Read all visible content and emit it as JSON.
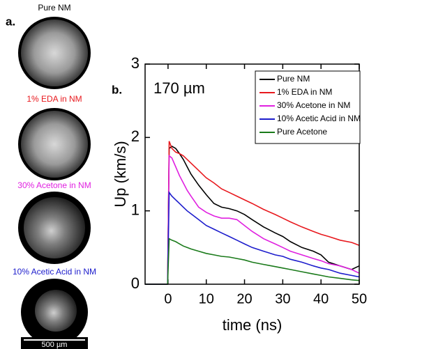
{
  "panel_a": {
    "label": "a.",
    "images": [
      {
        "caption": "Pure NM",
        "color": "#000000"
      },
      {
        "caption": "1% EDA in NM",
        "color": "#e8191e"
      },
      {
        "caption": "30% Acetone in NM",
        "color": "#e020e0"
      },
      {
        "caption": "10% Acetic Acid in NM",
        "color": "#1c1ccc"
      }
    ],
    "scale_bar": "500 µm"
  },
  "chart_data": {
    "type": "line",
    "panel_label": "b.",
    "annotation": "170 µm",
    "xlabel": "time (ns)",
    "ylabel": "Up (km/s)",
    "xlim": [
      -6,
      50
    ],
    "xticks": [
      0,
      10,
      20,
      30,
      40,
      50
    ],
    "ylim": [
      0,
      3
    ],
    "yticks": [
      0,
      1,
      2,
      3
    ],
    "x": [
      -6,
      -0.1,
      0.3,
      1,
      2,
      3,
      4,
      5,
      6,
      8,
      10,
      12,
      14,
      16,
      18,
      20,
      22,
      25,
      28,
      30,
      32,
      35,
      38,
      40,
      42,
      45,
      48,
      50
    ],
    "series": [
      {
        "name": "Pure NM",
        "color": "#000000",
        "values": [
          0,
          0,
          1.85,
          1.88,
          1.85,
          1.78,
          1.7,
          1.6,
          1.5,
          1.35,
          1.22,
          1.1,
          1.05,
          1.03,
          1.0,
          0.95,
          0.88,
          0.78,
          0.7,
          0.65,
          0.58,
          0.5,
          0.45,
          0.4,
          0.3,
          0.25,
          0.2,
          0.25
        ]
      },
      {
        "name": "1% EDA in NM",
        "color": "#e8191e",
        "values": [
          0,
          0,
          1.95,
          1.85,
          1.8,
          1.78,
          1.75,
          1.7,
          1.65,
          1.55,
          1.45,
          1.38,
          1.3,
          1.25,
          1.2,
          1.15,
          1.1,
          1.02,
          0.95,
          0.9,
          0.85,
          0.78,
          0.72,
          0.68,
          0.65,
          0.6,
          0.57,
          0.53
        ]
      },
      {
        "name": "30% Acetone in NM",
        "color": "#e020e0",
        "values": [
          0,
          0,
          1.75,
          1.72,
          1.6,
          1.48,
          1.38,
          1.28,
          1.2,
          1.05,
          0.98,
          0.93,
          0.9,
          0.9,
          0.88,
          0.8,
          0.72,
          0.62,
          0.55,
          0.5,
          0.45,
          0.4,
          0.35,
          0.32,
          0.28,
          0.25,
          0.2,
          0.15
        ]
      },
      {
        "name": "10% Acetic Acid in NM",
        "color": "#1c1ccc",
        "values": [
          0,
          0,
          1.25,
          1.2,
          1.15,
          1.1,
          1.05,
          1.0,
          0.96,
          0.88,
          0.8,
          0.75,
          0.7,
          0.65,
          0.6,
          0.55,
          0.5,
          0.45,
          0.4,
          0.38,
          0.34,
          0.3,
          0.25,
          0.22,
          0.2,
          0.15,
          0.12,
          0.1
        ]
      },
      {
        "name": "Pure Acetone",
        "color": "#1a7a1a",
        "values": [
          0,
          0,
          0.62,
          0.6,
          0.58,
          0.55,
          0.52,
          0.5,
          0.48,
          0.45,
          0.42,
          0.4,
          0.38,
          0.37,
          0.35,
          0.33,
          0.3,
          0.27,
          0.24,
          0.22,
          0.2,
          0.17,
          0.14,
          0.12,
          0.1,
          0.08,
          0.06,
          0.05
        ]
      }
    ]
  }
}
